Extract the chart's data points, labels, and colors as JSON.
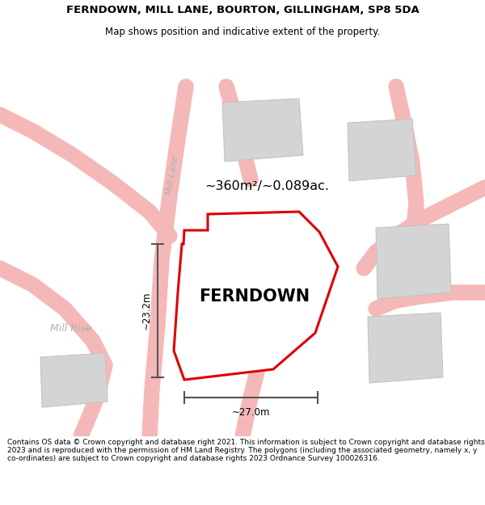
{
  "title_line1": "FERNDOWN, MILL LANE, BOURTON, GILLINGHAM, SP8 5DA",
  "title_line2": "Map shows position and indicative extent of the property.",
  "footer_text": "Contains OS data © Crown copyright and database right 2021. This information is subject to Crown copyright and database rights 2023 and is reproduced with the permission of HM Land Registry. The polygons (including the associated geometry, namely x, y co-ordinates) are subject to Crown copyright and database rights 2023 Ordnance Survey 100026316.",
  "property_label": "FERNDOWN",
  "area_label": "~360m²/~0.089ac.",
  "dim_vertical": "~23.2m",
  "dim_horizontal": "~27.0m",
  "road_label1": "Mill Lane",
  "road_label2": "Mill Rise",
  "bg_color": "#ffffff",
  "map_bg": "#ffffff",
  "road_color": "#f5b8b8",
  "building_color": "#d4d4d4",
  "building_edge": "#c0c0c0",
  "property_outline_color": "#dd0000",
  "dim_line_color": "#555555",
  "title_fontsize": 9.5,
  "subtitle_fontsize": 8.5,
  "footer_fontsize": 6.5
}
